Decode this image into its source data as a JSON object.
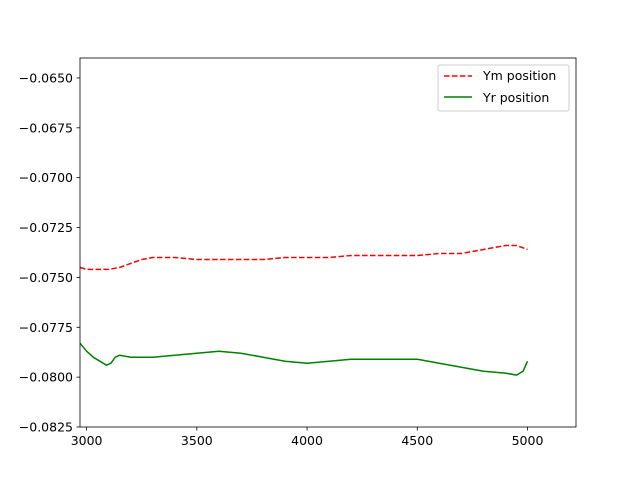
{
  "chart_data": {
    "type": "line",
    "title": "",
    "xlabel": "",
    "ylabel": "",
    "xlim": [
      2970,
      5220
    ],
    "ylim": [
      -0.0825,
      -0.064
    ],
    "x_ticks": [
      3000,
      3500,
      4000,
      4500,
      5000
    ],
    "x_tick_labels": [
      "3000",
      "3500",
      "4000",
      "4500",
      "5000"
    ],
    "y_ticks": [
      -0.065,
      -0.0675,
      -0.07,
      -0.0725,
      -0.075,
      -0.0775,
      -0.08,
      -0.0825
    ],
    "y_tick_labels": [
      "−0.0650",
      "−0.0675",
      "−0.0700",
      "−0.0725",
      "−0.0750",
      "−0.0775",
      "−0.0800",
      "−0.0825"
    ],
    "grid": false,
    "legend_position": "top-right",
    "series": [
      {
        "name": "Ym position",
        "color": "#ff0000",
        "style": "dashed",
        "x": [
          2970,
          3000,
          3050,
          3100,
          3150,
          3200,
          3250,
          3300,
          3350,
          3400,
          3500,
          3600,
          3700,
          3800,
          3900,
          4000,
          4100,
          4200,
          4300,
          4400,
          4500,
          4600,
          4700,
          4750,
          4800,
          4850,
          4900,
          4950,
          5000
        ],
        "y": [
          -0.0745,
          -0.0746,
          -0.0746,
          -0.0746,
          -0.0745,
          -0.0743,
          -0.0741,
          -0.074,
          -0.074,
          -0.074,
          -0.0741,
          -0.0741,
          -0.0741,
          -0.0741,
          -0.074,
          -0.074,
          -0.074,
          -0.0739,
          -0.0739,
          -0.0739,
          -0.0739,
          -0.0738,
          -0.0738,
          -0.0737,
          -0.0736,
          -0.0735,
          -0.0734,
          -0.0734,
          -0.0736
        ]
      },
      {
        "name": "Yr position",
        "color": "#008000",
        "style": "solid",
        "x": [
          2970,
          3000,
          3030,
          3060,
          3090,
          3110,
          3130,
          3150,
          3200,
          3300,
          3400,
          3500,
          3600,
          3700,
          3800,
          3900,
          4000,
          4100,
          4200,
          4300,
          4400,
          4500,
          4550,
          4600,
          4650,
          4700,
          4800,
          4900,
          4950,
          4980,
          5000
        ],
        "y": [
          -0.0783,
          -0.0787,
          -0.079,
          -0.0792,
          -0.0794,
          -0.0793,
          -0.079,
          -0.0789,
          -0.079,
          -0.079,
          -0.0789,
          -0.0788,
          -0.0787,
          -0.0788,
          -0.079,
          -0.0792,
          -0.0793,
          -0.0792,
          -0.0791,
          -0.0791,
          -0.0791,
          -0.0791,
          -0.0792,
          -0.0793,
          -0.0794,
          -0.0795,
          -0.0797,
          -0.0798,
          -0.0799,
          -0.0797,
          -0.0792
        ]
      }
    ]
  }
}
